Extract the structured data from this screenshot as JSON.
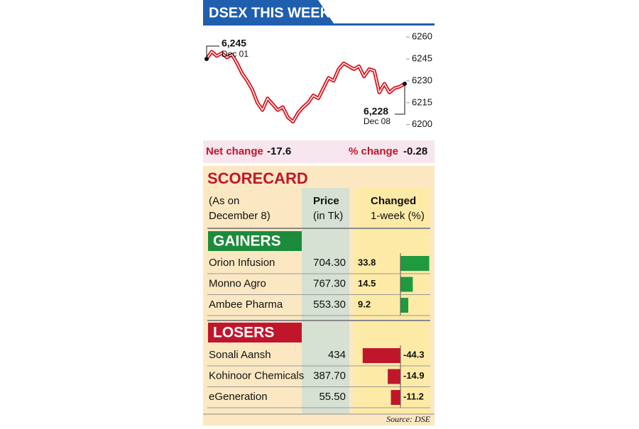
{
  "chart_data": [
    {
      "type": "line",
      "title": "DSEX THIS WEEK",
      "color": "#d7141e",
      "categories": [
        "Dec 01",
        null,
        null,
        null,
        null,
        null,
        null,
        null,
        null,
        null,
        null,
        null,
        null,
        null,
        null,
        null,
        null,
        null,
        null,
        null,
        null,
        null,
        null,
        null,
        null,
        null,
        null,
        null,
        null,
        null,
        null,
        null,
        null,
        null,
        null,
        null,
        null,
        null,
        null,
        "Dec 08"
      ],
      "values": [
        6245,
        6250,
        6247,
        6249,
        6246,
        6248,
        6242,
        6235,
        6230,
        6224,
        6215,
        6210,
        6218,
        6214,
        6210,
        6212,
        6205,
        6202,
        6208,
        6212,
        6215,
        6220,
        6218,
        6225,
        6232,
        6230,
        6238,
        6242,
        6240,
        6238,
        6240,
        6233,
        6238,
        6237,
        6222,
        6228,
        6222,
        6225,
        6226,
        6228
      ],
      "ylim": [
        6196,
        6264
      ],
      "yticks": [
        6200,
        6215,
        6230,
        6245,
        6260
      ],
      "annotations": [
        {
          "label": "6,245",
          "value": 6245
        },
        {
          "label": "6,228",
          "value": 6228
        }
      ],
      "summary": [
        {
          "label": "Net change",
          "value": -17.6
        },
        {
          "label": "% change",
          "value": -0.28
        }
      ]
    },
    {
      "type": "bar",
      "orientation": "horizontal",
      "categories": [
        "Orion Infusion",
        "Monno Agro",
        "Ambee Pharma",
        "Sonali Aansh",
        "Kohinoor Chemicals",
        "eGeneration"
      ],
      "values": [
        33.8,
        14.5,
        9.2,
        -44.3,
        -14.9,
        -11.2
      ],
      "color_positive": "#1f9a3e",
      "color_negative": "#c0162c"
    }
  ],
  "scorecard": {
    "title": "SCORECARD",
    "headers": [
      [
        "(As on",
        "December 8)"
      ],
      [
        "Price",
        "(in Tk)"
      ],
      [
        "Changed",
        "1-week (%)"
      ]
    ],
    "groups": [
      "GAINERS",
      "LOSERS"
    ],
    "prices": [
      "704.30",
      "767.30",
      "553.30",
      "434",
      "387.70",
      "55.50"
    ],
    "source": "Source: DSE"
  }
}
